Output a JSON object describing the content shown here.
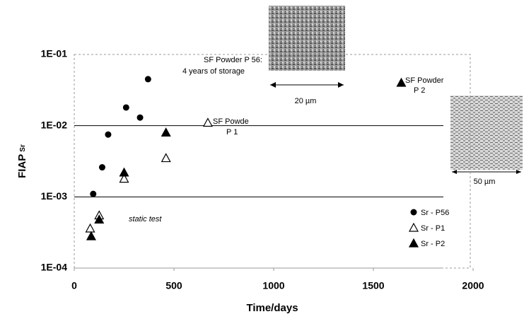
{
  "chart_data": {
    "type": "scatter",
    "y_label": "FIAP",
    "y_label_sub": "Sr",
    "x_label": "Time/days",
    "log_y": true,
    "xlim": [
      0,
      2000
    ],
    "xticks": [
      0,
      500,
      1000,
      1500,
      2000
    ],
    "ylim": [
      0.0001,
      0.1
    ],
    "yticks": [
      {
        "value": 0.0001,
        "label": "1E-04"
      },
      {
        "value": 0.001,
        "label": "1E-03"
      },
      {
        "value": 0.01,
        "label": "1E-02"
      },
      {
        "value": 0.1,
        "label": "1E-01"
      }
    ],
    "grid": true,
    "legend": "lower right",
    "series": [
      {
        "name": "Sr - P56",
        "color": "#000000",
        "marker": "circle",
        "x": [
          95,
          140,
          170,
          260,
          330,
          370
        ],
        "values": [
          0.0011,
          0.0026,
          0.0075,
          0.018,
          0.013,
          0.045
        ]
      },
      {
        "name": "Sr - P1",
        "color": "#000000",
        "marker": "triangle-open",
        "x": [
          80,
          125,
          250,
          460,
          670
        ],
        "values": [
          0.00036,
          0.00055,
          0.0018,
          0.0035,
          0.011
        ]
      },
      {
        "name": "Sr - P2",
        "color": "#000000",
        "marker": "triangle",
        "x": [
          85,
          125,
          250,
          460,
          1640
        ],
        "values": [
          0.00028,
          0.00048,
          0.0022,
          0.008,
          0.04
        ]
      }
    ],
    "annotations": [
      "SF Powder P 56:",
      "4 years of storage",
      "SF Powde",
      "P 1",
      "SF Powder",
      "P 2",
      "static test",
      "20 µm",
      "50 µm"
    ]
  }
}
